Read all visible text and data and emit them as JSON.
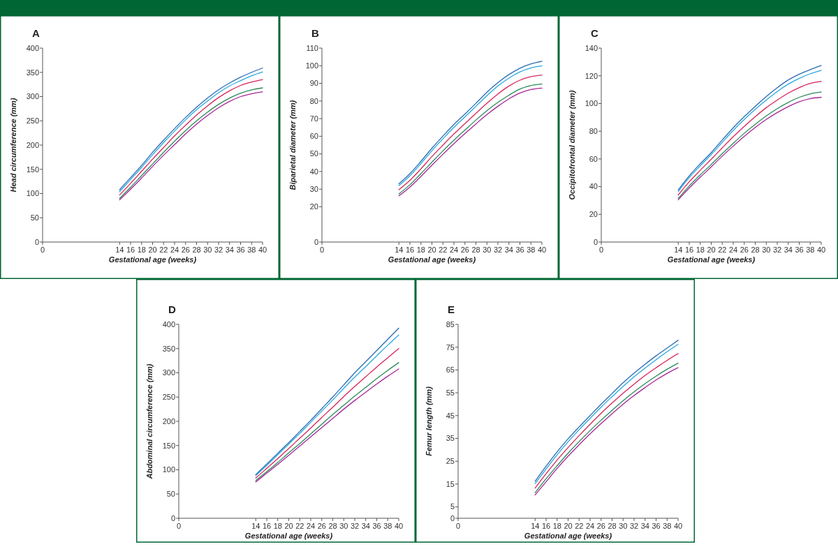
{
  "chart_data": [
    {
      "type": "line",
      "title": "A",
      "xlabel": "Gestational age (weeks)",
      "ylabel": "Head circumference (mm)",
      "x": [
        14,
        16,
        18,
        20,
        22,
        24,
        26,
        28,
        30,
        32,
        34,
        36,
        38,
        40
      ],
      "xlim": [
        0,
        40
      ],
      "xticks": [
        0,
        14,
        16,
        18,
        20,
        22,
        24,
        26,
        28,
        30,
        32,
        34,
        36,
        38,
        40
      ],
      "ylim": [
        0,
        400
      ],
      "yticks": [
        0,
        50,
        100,
        150,
        200,
        250,
        300,
        350,
        400
      ],
      "series": [
        {
          "color": "#2b6cb0",
          "values": [
            108,
            133,
            158,
            185,
            210,
            234,
            257,
            278,
            297,
            314,
            328,
            340,
            350,
            359
          ]
        },
        {
          "color": "#29a8e0",
          "values": [
            104,
            129,
            154,
            180,
            205,
            229,
            252,
            273,
            291,
            308,
            322,
            333,
            343,
            351
          ]
        },
        {
          "color": "#d6245a",
          "values": [
            97,
            121,
            146,
            171,
            195,
            219,
            241,
            262,
            281,
            298,
            312,
            323,
            330,
            335
          ]
        },
        {
          "color": "#2a8a5a",
          "values": [
            90,
            113,
            137,
            161,
            185,
            208,
            230,
            250,
            268,
            284,
            297,
            307,
            314,
            318
          ]
        },
        {
          "color": "#a8259a",
          "values": [
            87,
            109,
            132,
            156,
            179,
            201,
            223,
            243,
            261,
            277,
            290,
            300,
            306,
            310
          ]
        }
      ]
    },
    {
      "type": "line",
      "title": "B",
      "xlabel": "Gestational age (weeks)",
      "ylabel": "Biparietal diameter (mm)",
      "x": [
        14,
        16,
        18,
        20,
        22,
        24,
        26,
        28,
        30,
        32,
        34,
        36,
        38,
        40
      ],
      "xlim": [
        0,
        40
      ],
      "xticks": [
        0,
        14,
        16,
        18,
        20,
        22,
        24,
        26,
        28,
        30,
        32,
        34,
        36,
        38,
        40
      ],
      "ylim": [
        0,
        110
      ],
      "yticks": [
        0,
        20,
        30,
        40,
        50,
        60,
        70,
        80,
        90,
        100,
        110
      ],
      "series": [
        {
          "color": "#2b6cb0",
          "values": [
            33,
            38.8,
            45.8,
            53.2,
            60.1,
            66.7,
            72.6,
            78.7,
            85,
            90.4,
            95,
            98.6,
            101,
            102.5
          ]
        },
        {
          "color": "#29a8e0",
          "values": [
            32,
            37.6,
            44.5,
            51.8,
            58.6,
            65.1,
            71,
            77,
            83,
            88.5,
            93,
            96.5,
            98.8,
            100
          ]
        },
        {
          "color": "#d6245a",
          "values": [
            29.7,
            35,
            41.5,
            48.5,
            55,
            61.3,
            67.2,
            73,
            78.7,
            84,
            88.5,
            91.8,
            93.8,
            94.7
          ]
        },
        {
          "color": "#2a8a5a",
          "values": [
            27.3,
            32.5,
            38.8,
            45.3,
            51.7,
            57.8,
            63.5,
            69.2,
            74.5,
            79.2,
            83.3,
            86.8,
            88.8,
            89.7
          ]
        },
        {
          "color": "#a8259a",
          "values": [
            26.2,
            31.2,
            37.2,
            43.6,
            49.8,
            55.8,
            61.5,
            67,
            72.3,
            77,
            81.2,
            84.5,
            86.5,
            87.3
          ]
        }
      ]
    },
    {
      "type": "line",
      "title": "C",
      "xlabel": "Gestational age (weeks)",
      "ylabel": "Occipitofrontal diameter (mm)",
      "x": [
        14,
        16,
        18,
        20,
        22,
        24,
        26,
        28,
        30,
        32,
        34,
        36,
        38,
        40
      ],
      "xlim": [
        0,
        40
      ],
      "xticks": [
        0,
        14,
        16,
        18,
        20,
        22,
        24,
        26,
        28,
        30,
        32,
        34,
        36,
        38,
        40
      ],
      "ylim": [
        0,
        140
      ],
      "yticks": [
        0,
        20,
        40,
        60,
        80,
        100,
        120,
        140
      ],
      "series": [
        {
          "color": "#2b6cb0",
          "values": [
            37.6,
            47.8,
            56.5,
            64.6,
            73.7,
            82.5,
            90.5,
            98,
            105,
            111.4,
            117,
            121.2,
            124.5,
            127.5
          ]
        },
        {
          "color": "#29a8e0",
          "values": [
            36.5,
            46.5,
            55,
            63.2,
            72,
            80.6,
            88.5,
            95.8,
            102.5,
            108.7,
            114,
            118.2,
            121.5,
            124
          ]
        },
        {
          "color": "#d6245a",
          "values": [
            34,
            43.5,
            51.8,
            59.8,
            68,
            76,
            83.5,
            90.5,
            97,
            102.5,
            107.5,
            111.5,
            114.5,
            116
          ]
        },
        {
          "color": "#2a8a5a",
          "values": [
            31.5,
            40.5,
            48.5,
            56,
            63.8,
            71.3,
            78.5,
            85,
            91,
            96.3,
            100.8,
            104.5,
            107,
            108.3
          ]
        },
        {
          "color": "#a8259a",
          "values": [
            30.5,
            39,
            46.8,
            54.3,
            62,
            69.3,
            76.3,
            82.7,
            88.5,
            93.5,
            97.8,
            101.3,
            103.6,
            104.5
          ]
        }
      ]
    },
    {
      "type": "line",
      "title": "D",
      "xlabel": "Gestational age (weeks)",
      "ylabel": "Abdominal circumference (mm)",
      "x": [
        14,
        16,
        18,
        20,
        22,
        24,
        26,
        28,
        30,
        32,
        34,
        36,
        38,
        40
      ],
      "xlim": [
        0,
        40
      ],
      "xticks": [
        0,
        14,
        16,
        18,
        20,
        22,
        24,
        26,
        28,
        30,
        32,
        34,
        36,
        38,
        40
      ],
      "ylim": [
        0,
        400
      ],
      "yticks": [
        0,
        50,
        100,
        150,
        200,
        250,
        300,
        350,
        400
      ],
      "series": [
        {
          "color": "#2b6cb0",
          "values": [
            90,
            112,
            134,
            156,
            179,
            202,
            226,
            250,
            275,
            300,
            323,
            346,
            369,
            392
          ]
        },
        {
          "color": "#29a8e0",
          "values": [
            88,
            109,
            131,
            153,
            175,
            198,
            221,
            244,
            268,
            291,
            313,
            335,
            357,
            378
          ]
        },
        {
          "color": "#d6245a",
          "values": [
            83,
            103,
            123,
            144,
            165,
            186,
            208,
            229,
            251,
            272,
            292,
            312,
            331,
            350
          ]
        },
        {
          "color": "#2a8a5a",
          "values": [
            78,
            96,
            115,
            135,
            154,
            174,
            194,
            214,
            233,
            252,
            270,
            288,
            305,
            321
          ]
        },
        {
          "color": "#a8259a",
          "values": [
            75,
            93,
            111,
            130,
            149,
            168,
            187,
            206,
            225,
            243,
            260,
            277,
            293,
            308
          ]
        }
      ]
    },
    {
      "type": "line",
      "title": "E",
      "xlabel": "Gestational age (weeks)",
      "ylabel": "Femur length (mm)",
      "x": [
        14,
        16,
        18,
        20,
        22,
        24,
        26,
        28,
        30,
        32,
        34,
        36,
        38,
        40
      ],
      "xlim": [
        0,
        40
      ],
      "xticks": [
        0,
        14,
        16,
        18,
        20,
        22,
        24,
        26,
        28,
        30,
        32,
        34,
        36,
        38,
        40
      ],
      "ylim": [
        0,
        85
      ],
      "yticks": [
        0,
        5,
        15,
        25,
        35,
        45,
        55,
        65,
        75,
        85
      ],
      "series": [
        {
          "color": "#2b6cb0",
          "values": [
            16.2,
            22.8,
            29.1,
            34.8,
            40,
            45,
            50,
            54.7,
            59.4,
            63.6,
            67.5,
            71.2,
            74.6,
            78
          ]
        },
        {
          "color": "#29a8e0",
          "values": [
            15.2,
            21.6,
            27.8,
            33.5,
            38.8,
            43.8,
            48.7,
            53.3,
            57.8,
            62,
            65.8,
            69.5,
            73,
            76.2
          ]
        },
        {
          "color": "#d6245a",
          "values": [
            13.2,
            19.5,
            25.5,
            31,
            36.2,
            41.2,
            46,
            50.5,
            54.8,
            58.8,
            62.6,
            66,
            69.2,
            72.2
          ]
        },
        {
          "color": "#2a8a5a",
          "values": [
            11.2,
            17.3,
            23,
            28.5,
            33.6,
            38.4,
            43,
            47.3,
            51.5,
            55.4,
            59,
            62.3,
            65.3,
            68
          ]
        },
        {
          "color": "#a8259a",
          "values": [
            10.2,
            16,
            21.8,
            27.2,
            32.2,
            37,
            41.5,
            45.8,
            50,
            53.8,
            57.3,
            60.6,
            63.5,
            66
          ]
        }
      ]
    }
  ]
}
